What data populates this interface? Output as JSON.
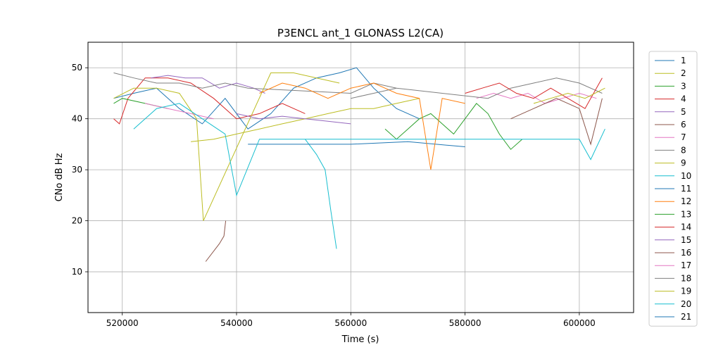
{
  "chart_data": {
    "type": "line",
    "title": "P3ENCL ant_1 GLONASS L2(CA)",
    "xlabel": "Time (s)",
    "ylabel": "CNo dB Hz",
    "xlim": [
      514000,
      609500
    ],
    "ylim": [
      2,
      55
    ],
    "xticks": [
      520000,
      540000,
      560000,
      580000,
      600000
    ],
    "xtick_labels": [
      "520000",
      "540000",
      "560000",
      "580000",
      "600000"
    ],
    "yticks": [
      10,
      20,
      30,
      40,
      50
    ],
    "ytick_labels": [
      "10",
      "20",
      "30",
      "40",
      "50"
    ],
    "grid": true,
    "legend_position": "right-outside",
    "series": [
      {
        "name": "1",
        "color": "#1f77b4",
        "x": [
          518500,
          522000,
          526000,
          530000,
          534000,
          538000,
          542000,
          546000,
          550000,
          554000,
          558000,
          561000,
          564000,
          568000,
          572000
        ],
        "y": [
          44,
          45,
          46,
          42,
          39,
          44,
          38,
          41,
          46,
          48,
          49,
          50,
          46,
          42,
          40
        ]
      },
      {
        "name": "2",
        "color": "#bcbd22",
        "x": [
          532000,
          536000,
          540000,
          544000,
          548000,
          552000,
          556000,
          560000,
          564000,
          568000,
          572000
        ],
        "y": [
          35.5,
          36,
          37,
          38,
          39,
          40,
          41,
          42,
          42,
          43,
          44
        ]
      },
      {
        "name": "3",
        "color": "#2ca02c",
        "x": [
          566000,
          568000,
          570000,
          572000,
          574000,
          576000,
          578000,
          580000,
          582000,
          584000,
          586000,
          588000,
          590000
        ],
        "y": [
          38,
          36,
          38,
          40,
          41,
          39,
          37,
          40,
          43,
          41,
          37,
          34,
          36
        ]
      },
      {
        "name": "4",
        "color": "#d62728",
        "x": [
          518500,
          519500,
          521000,
          524000,
          528000,
          532000,
          536000,
          540000,
          544000,
          548000,
          552000
        ],
        "y": [
          40,
          39,
          44,
          48,
          48,
          47,
          44,
          40,
          41,
          43,
          41
        ]
      },
      {
        "name": "5",
        "color": "#9467bd",
        "x": [
          525000,
          528000,
          531000,
          534000,
          537000,
          540000,
          543000,
          545000
        ],
        "y": [
          48,
          48.5,
          48,
          48,
          46,
          47,
          46,
          45
        ]
      },
      {
        "name": "6",
        "color": "#8c564b",
        "x": [
          534600,
          537000,
          537800,
          538100
        ],
        "y": [
          12,
          15.5,
          17,
          20
        ]
      },
      {
        "name": "7",
        "color": "#e377c2",
        "x": [
          582000,
          585000,
          588000,
          591000,
          594000,
          597000,
          600000,
          603000
        ],
        "y": [
          44,
          45,
          44,
          45,
          43,
          44,
          45,
          44
        ]
      },
      {
        "name": "8",
        "color": "#7f7f7f",
        "x": [
          518500,
          522000,
          526000,
          530000,
          534000,
          538000,
          542000,
          560000,
          564000,
          568000,
          584000,
          588000,
          592000,
          596000,
          600000,
          604000
        ],
        "y": [
          49,
          48,
          47,
          47,
          46,
          47,
          46,
          45,
          47,
          46,
          44,
          46,
          47,
          48,
          47,
          45
        ]
      },
      {
        "name": "9",
        "color": "#bcbd22",
        "x": [
          518500,
          522000,
          526000,
          530000,
          533000,
          534200,
          546000,
          550000,
          554000,
          558000
        ],
        "y": [
          44,
          46,
          46,
          45,
          40,
          20,
          49,
          49,
          48,
          47
        ]
      },
      {
        "name": "10",
        "color": "#17becf",
        "x": [
          552000,
          554000,
          555500,
          556500,
          557500
        ],
        "y": [
          36,
          33,
          30,
          22,
          14.5
        ]
      },
      {
        "name": "11",
        "color": "#1f77b4",
        "x": [
          542000,
          550000,
          560000,
          570000,
          580000
        ],
        "y": [
          35,
          35,
          35,
          35.5,
          34.5
        ]
      },
      {
        "name": "12",
        "color": "#ff7f0e",
        "x": [
          544000,
          548000,
          552000,
          556000,
          560000,
          564000,
          568000,
          572000,
          574000,
          576000,
          580000
        ],
        "y": [
          45,
          47,
          46,
          44,
          46,
          47,
          45,
          44,
          30,
          44,
          43
        ]
      },
      {
        "name": "13",
        "color": "#2ca02c",
        "x": [
          518500,
          520000,
          524000,
          528000
        ],
        "y": [
          43,
          44,
          43,
          42
        ]
      },
      {
        "name": "14",
        "color": "#d62728",
        "x": [
          580000,
          583000,
          586000,
          589000,
          592000,
          595000,
          598000,
          601000,
          604000
        ],
        "y": [
          45,
          46,
          47,
          45,
          44,
          46,
          44,
          42,
          48
        ]
      },
      {
        "name": "15",
        "color": "#9467bd",
        "x": [
          540000,
          544000,
          548000,
          552000,
          556000,
          560000
        ],
        "y": [
          41,
          40,
          40.5,
          40,
          39.5,
          39
        ]
      },
      {
        "name": "16",
        "color": "#8c564b",
        "x": [
          588000,
          592000,
          596000,
          600000,
          602000,
          604000
        ],
        "y": [
          40,
          42,
          44,
          42,
          35,
          44
        ]
      },
      {
        "name": "17",
        "color": "#e377c2",
        "x": [
          524000,
          528000,
          532000,
          536000
        ],
        "y": [
          43,
          42,
          41,
          40
        ]
      },
      {
        "name": "18",
        "color": "#7f7f7f",
        "x": [
          560000,
          564000,
          568000
        ],
        "y": [
          44,
          45,
          46
        ]
      },
      {
        "name": "19",
        "color": "#bcbd22",
        "x": [
          592000,
          595000,
          598000,
          601000,
          604500
        ],
        "y": [
          43,
          44,
          45,
          44,
          46
        ]
      },
      {
        "name": "20",
        "color": "#17becf",
        "x": [
          522000,
          526000,
          530000,
          534000,
          538000,
          540000,
          544000,
          560000,
          580000,
          590000,
          600000,
          602000,
          604500
        ],
        "y": [
          38,
          42,
          43,
          40,
          37,
          25,
          36,
          36,
          36,
          36,
          36,
          32,
          38
        ]
      },
      {
        "name": "21",
        "color": "#1f77b4",
        "x": [],
        "y": []
      }
    ]
  }
}
